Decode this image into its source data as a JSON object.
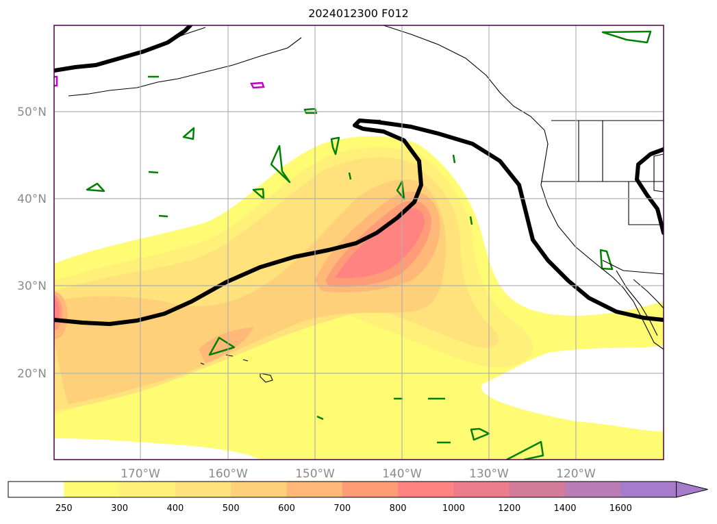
{
  "title": "2024012300 F012",
  "colors": {
    "ocean": "#ffffff",
    "land_line": "#000000",
    "jet": "#000000",
    "green_contour": "#008000",
    "magenta_contour": "#c000c0",
    "grid": "#b0b0b0",
    "frame": "#4a0040"
  },
  "lat_labels": [
    "50°N",
    "40°N",
    "30°N",
    "20°N"
  ],
  "lon_labels": [
    "170°W",
    "160°W",
    "150°W",
    "140°W",
    "130°W",
    "120°W"
  ],
  "colorbar": {
    "levels": [
      "250",
      "300",
      "400",
      "500",
      "600",
      "700",
      "800",
      "1000",
      "1200",
      "1400",
      "1600"
    ],
    "colors": [
      "#ffffff",
      "#fffb73",
      "#fff07a",
      "#ffe27c",
      "#ffd07a",
      "#ffb878",
      "#ff9c78",
      "#ff8380",
      "#ec7c8a",
      "#d47b9a",
      "#bb7cb5",
      "#a77bcb"
    ],
    "extend": "max"
  }
}
